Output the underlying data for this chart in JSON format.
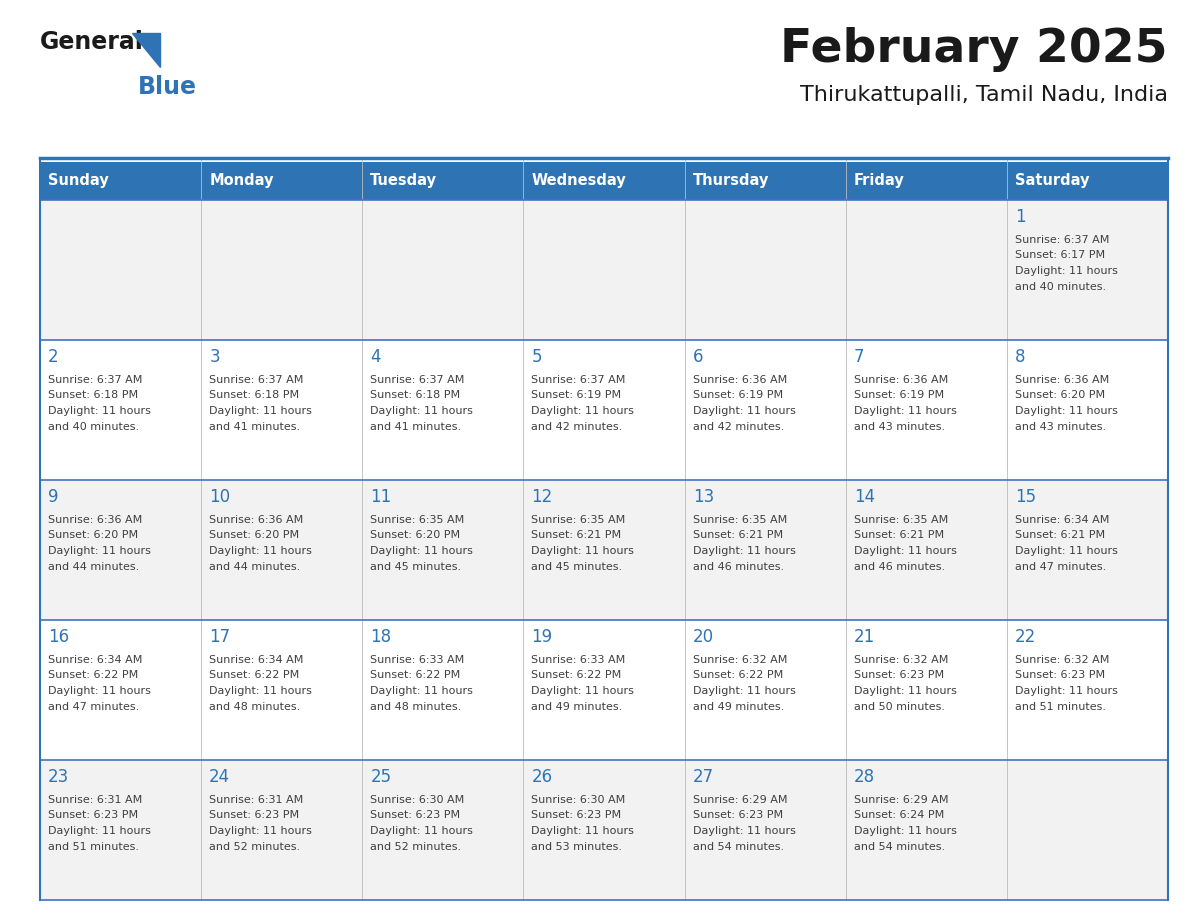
{
  "title": "February 2025",
  "subtitle": "Thirukattupalli, Tamil Nadu, India",
  "days_of_week": [
    "Sunday",
    "Monday",
    "Tuesday",
    "Wednesday",
    "Thursday",
    "Friday",
    "Saturday"
  ],
  "header_bg": "#2e74b5",
  "header_text": "#ffffff",
  "cell_bg_odd": "#f2f2f2",
  "cell_bg_even": "#ffffff",
  "divider_color": "#2e74b5",
  "row_divider_color": "#4472c4",
  "day_number_color": "#2e74b5",
  "info_text_color": "#404040",
  "calendar_data": [
    [
      null,
      null,
      null,
      null,
      null,
      null,
      {
        "day": 1,
        "sunrise": "6:37 AM",
        "sunset": "6:17 PM",
        "daylight": "11 hours and 40 minutes."
      }
    ],
    [
      {
        "day": 2,
        "sunrise": "6:37 AM",
        "sunset": "6:18 PM",
        "daylight": "11 hours and 40 minutes."
      },
      {
        "day": 3,
        "sunrise": "6:37 AM",
        "sunset": "6:18 PM",
        "daylight": "11 hours and 41 minutes."
      },
      {
        "day": 4,
        "sunrise": "6:37 AM",
        "sunset": "6:18 PM",
        "daylight": "11 hours and 41 minutes."
      },
      {
        "day": 5,
        "sunrise": "6:37 AM",
        "sunset": "6:19 PM",
        "daylight": "11 hours and 42 minutes."
      },
      {
        "day": 6,
        "sunrise": "6:36 AM",
        "sunset": "6:19 PM",
        "daylight": "11 hours and 42 minutes."
      },
      {
        "day": 7,
        "sunrise": "6:36 AM",
        "sunset": "6:19 PM",
        "daylight": "11 hours and 43 minutes."
      },
      {
        "day": 8,
        "sunrise": "6:36 AM",
        "sunset": "6:20 PM",
        "daylight": "11 hours and 43 minutes."
      }
    ],
    [
      {
        "day": 9,
        "sunrise": "6:36 AM",
        "sunset": "6:20 PM",
        "daylight": "11 hours and 44 minutes."
      },
      {
        "day": 10,
        "sunrise": "6:36 AM",
        "sunset": "6:20 PM",
        "daylight": "11 hours and 44 minutes."
      },
      {
        "day": 11,
        "sunrise": "6:35 AM",
        "sunset": "6:20 PM",
        "daylight": "11 hours and 45 minutes."
      },
      {
        "day": 12,
        "sunrise": "6:35 AM",
        "sunset": "6:21 PM",
        "daylight": "11 hours and 45 minutes."
      },
      {
        "day": 13,
        "sunrise": "6:35 AM",
        "sunset": "6:21 PM",
        "daylight": "11 hours and 46 minutes."
      },
      {
        "day": 14,
        "sunrise": "6:35 AM",
        "sunset": "6:21 PM",
        "daylight": "11 hours and 46 minutes."
      },
      {
        "day": 15,
        "sunrise": "6:34 AM",
        "sunset": "6:21 PM",
        "daylight": "11 hours and 47 minutes."
      }
    ],
    [
      {
        "day": 16,
        "sunrise": "6:34 AM",
        "sunset": "6:22 PM",
        "daylight": "11 hours and 47 minutes."
      },
      {
        "day": 17,
        "sunrise": "6:34 AM",
        "sunset": "6:22 PM",
        "daylight": "11 hours and 48 minutes."
      },
      {
        "day": 18,
        "sunrise": "6:33 AM",
        "sunset": "6:22 PM",
        "daylight": "11 hours and 48 minutes."
      },
      {
        "day": 19,
        "sunrise": "6:33 AM",
        "sunset": "6:22 PM",
        "daylight": "11 hours and 49 minutes."
      },
      {
        "day": 20,
        "sunrise": "6:32 AM",
        "sunset": "6:22 PM",
        "daylight": "11 hours and 49 minutes."
      },
      {
        "day": 21,
        "sunrise": "6:32 AM",
        "sunset": "6:23 PM",
        "daylight": "11 hours and 50 minutes."
      },
      {
        "day": 22,
        "sunrise": "6:32 AM",
        "sunset": "6:23 PM",
        "daylight": "11 hours and 51 minutes."
      }
    ],
    [
      {
        "day": 23,
        "sunrise": "6:31 AM",
        "sunset": "6:23 PM",
        "daylight": "11 hours and 51 minutes."
      },
      {
        "day": 24,
        "sunrise": "6:31 AM",
        "sunset": "6:23 PM",
        "daylight": "11 hours and 52 minutes."
      },
      {
        "day": 25,
        "sunrise": "6:30 AM",
        "sunset": "6:23 PM",
        "daylight": "11 hours and 52 minutes."
      },
      {
        "day": 26,
        "sunrise": "6:30 AM",
        "sunset": "6:23 PM",
        "daylight": "11 hours and 53 minutes."
      },
      {
        "day": 27,
        "sunrise": "6:29 AM",
        "sunset": "6:23 PM",
        "daylight": "11 hours and 54 minutes."
      },
      {
        "day": 28,
        "sunrise": "6:29 AM",
        "sunset": "6:24 PM",
        "daylight": "11 hours and 54 minutes."
      },
      null
    ]
  ]
}
